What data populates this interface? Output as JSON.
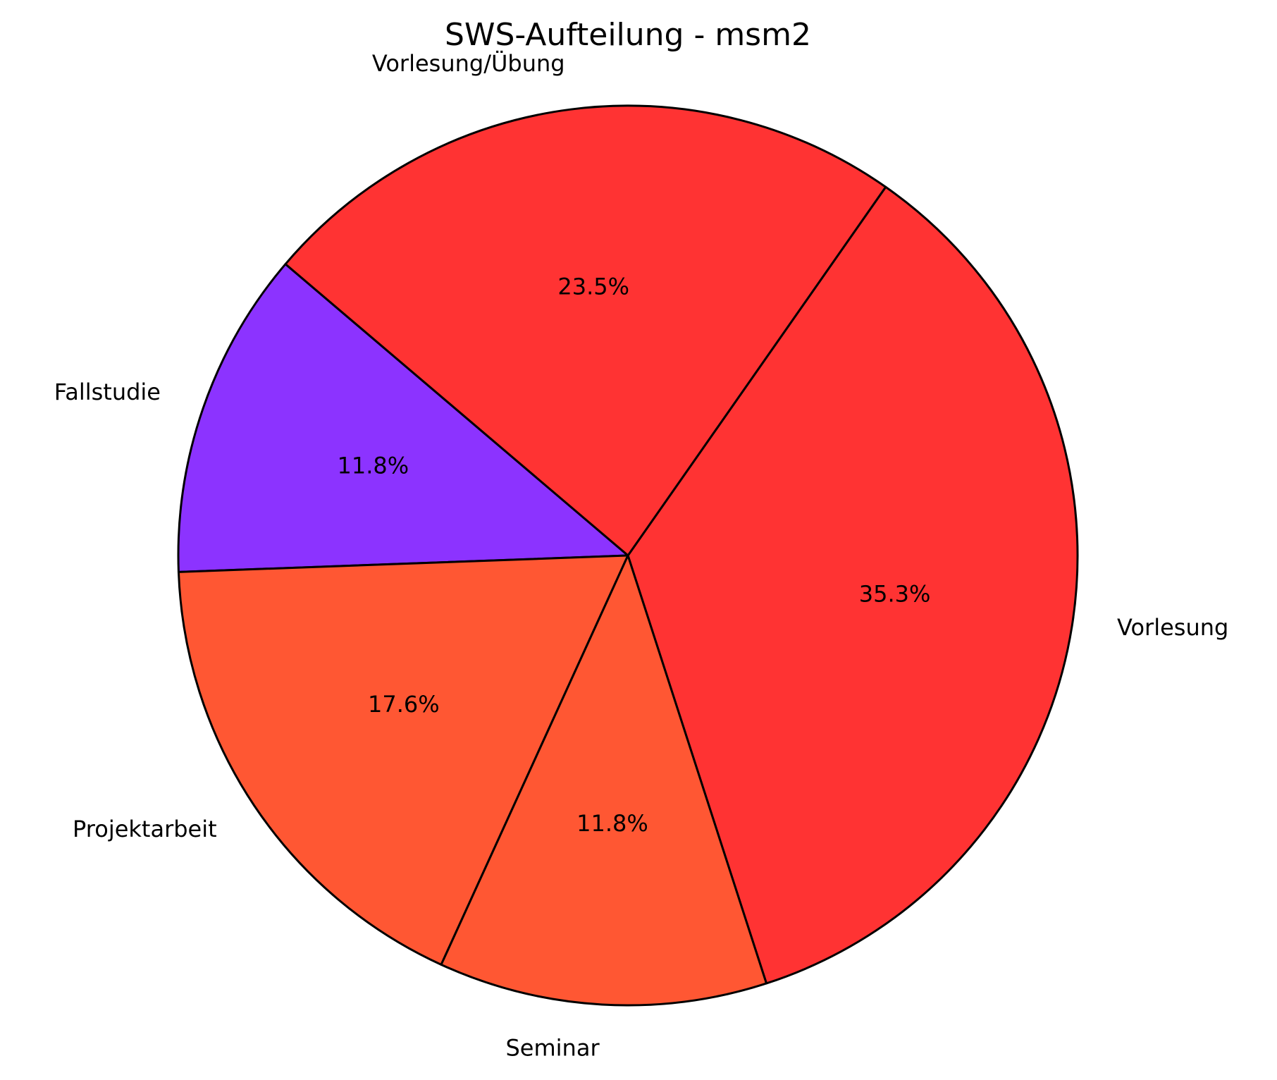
{
  "chart_data": {
    "type": "pie",
    "title": "SWS-Aufteilung - msm2",
    "categories": [
      "Vorlesung",
      "Vorlesung/Übung",
      "Fallstudie",
      "Projektarbeit",
      "Seminar"
    ],
    "values": [
      35.3,
      23.5,
      11.8,
      17.6,
      11.8
    ],
    "value_labels": [
      "35.3%",
      "23.5%",
      "11.8%",
      "17.6%",
      "11.8%"
    ],
    "colors": [
      "#ff3333",
      "#ff3333",
      "#8c33ff",
      "#ff5733",
      "#ff5733"
    ]
  }
}
